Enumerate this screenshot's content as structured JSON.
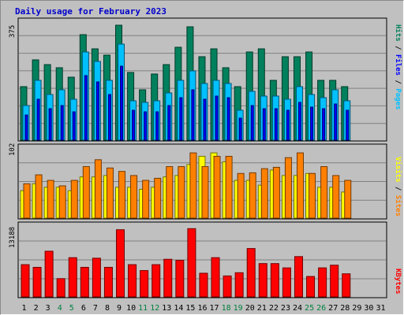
{
  "title": "Daily usage for February 2023",
  "legend": {
    "hits": "Hits",
    "files": "Files",
    "pages": "Pages",
    "visits": "Visits",
    "sites": "Sites",
    "kbytes": "KBytes",
    "sep": " / "
  },
  "colors": {
    "hits": "#00805c",
    "files": "#00c0ff",
    "pages": "#0000ff",
    "visits": "#ffff00",
    "sites": "#ff8000",
    "kbytes": "#ff0000",
    "day_weekend": "#008040",
    "day_weekday": "#000000"
  },
  "chart_data": [
    {
      "type": "bar",
      "panel": "top",
      "ymax_label": "375",
      "ylim": [
        0,
        375
      ],
      "categories": [
        "1",
        "2",
        "3",
        "4",
        "5",
        "6",
        "7",
        "8",
        "9",
        "10",
        "11",
        "12",
        "13",
        "14",
        "15",
        "16",
        "17",
        "18",
        "19",
        "20",
        "21",
        "22",
        "23",
        "24",
        "25",
        "26",
        "27",
        "28",
        "29",
        "30",
        "31"
      ],
      "weekend_days": [
        "4",
        "5",
        "11",
        "12",
        "18",
        "19",
        "25",
        "26"
      ],
      "series": [
        {
          "name": "Hits",
          "key": "hits",
          "values": [
            170,
            255,
            240,
            230,
            200,
            335,
            290,
            270,
            365,
            215,
            160,
            210,
            240,
            295,
            360,
            265,
            290,
            230,
            170,
            280,
            290,
            190,
            265,
            265,
            280,
            190,
            190,
            170,
            0,
            0,
            0
          ]
        },
        {
          "name": "Files",
          "key": "files",
          "values": [
            110,
            190,
            145,
            160,
            130,
            280,
            250,
            190,
            305,
            125,
            120,
            125,
            150,
            190,
            220,
            180,
            190,
            180,
            95,
            155,
            140,
            140,
            130,
            170,
            145,
            135,
            160,
            125,
            0,
            0,
            0
          ]
        },
        {
          "name": "Pages",
          "key": "pages",
          "values": [
            80,
            130,
            100,
            110,
            90,
            205,
            185,
            145,
            235,
            95,
            90,
            90,
            110,
            135,
            160,
            130,
            140,
            135,
            70,
            110,
            100,
            100,
            95,
            120,
            105,
            100,
            115,
            95,
            0,
            0,
            0
          ]
        }
      ]
    },
    {
      "type": "bar",
      "panel": "middle",
      "ymax_label": "102",
      "ylim": [
        0,
        102
      ],
      "categories": [
        "1",
        "2",
        "3",
        "4",
        "5",
        "6",
        "7",
        "8",
        "9",
        "10",
        "11",
        "12",
        "13",
        "14",
        "15",
        "16",
        "17",
        "18",
        "19",
        "20",
        "21",
        "22",
        "23",
        "24",
        "25",
        "26",
        "27",
        "28",
        "29",
        "30",
        "31"
      ],
      "series": [
        {
          "name": "Visits",
          "key": "visits",
          "values": [
            40,
            50,
            45,
            45,
            40,
            60,
            60,
            62,
            45,
            45,
            42,
            45,
            60,
            62,
            78,
            90,
            95,
            82,
            55,
            55,
            48,
            70,
            62,
            62,
            65,
            45,
            45,
            38,
            0,
            0,
            0
          ]
        },
        {
          "name": "Sites",
          "key": "sites",
          "values": [
            50,
            63,
            55,
            47,
            55,
            75,
            85,
            73,
            68,
            62,
            55,
            58,
            75,
            75,
            95,
            75,
            90,
            90,
            65,
            66,
            72,
            74,
            88,
            95,
            65,
            75,
            62,
            55,
            0,
            0,
            0
          ]
        }
      ]
    },
    {
      "type": "bar",
      "panel": "bottom",
      "ymax_label": "13188",
      "ylim": [
        0,
        13188
      ],
      "categories": [
        "1",
        "2",
        "3",
        "4",
        "5",
        "6",
        "7",
        "8",
        "9",
        "10",
        "11",
        "12",
        "13",
        "14",
        "15",
        "16",
        "17",
        "18",
        "19",
        "20",
        "21",
        "22",
        "23",
        "24",
        "25",
        "26",
        "27",
        "28",
        "29",
        "30",
        "31"
      ],
      "series": [
        {
          "name": "KBytes",
          "key": "kbytes",
          "values": [
            6000,
            5500,
            8500,
            3400,
            7300,
            5500,
            7200,
            5500,
            12500,
            6000,
            4900,
            6000,
            7000,
            6800,
            12700,
            4400,
            7300,
            3900,
            4500,
            9000,
            6200,
            6200,
            5400,
            7500,
            3800,
            5400,
            5900,
            4300,
            0,
            0,
            0
          ]
        }
      ]
    }
  ]
}
